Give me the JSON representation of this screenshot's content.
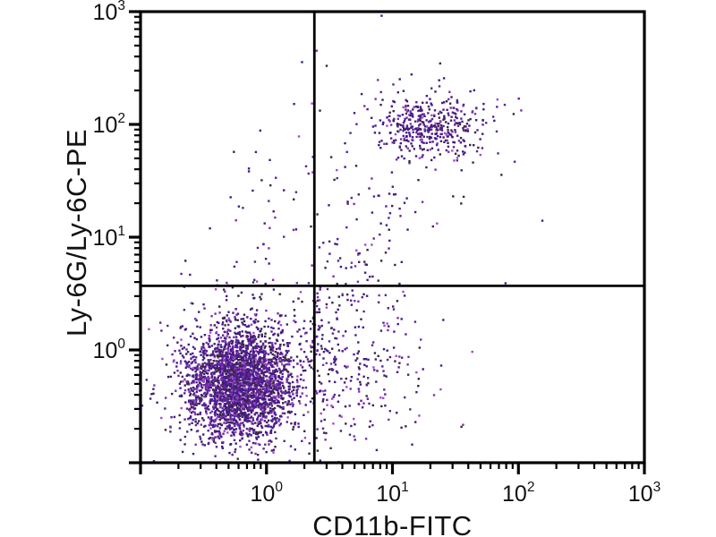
{
  "figure": {
    "kind": "flow-cytometry-quadrant-dot-plot",
    "background_color": "#ffffff",
    "axis_color": "#000000",
    "gate_line_color": "#000000",
    "dot_palette": [
      [
        "#451b86",
        0.4
      ],
      [
        "#5a2398",
        0.22
      ],
      [
        "#3a273f",
        0.18
      ],
      [
        "#7b2fb0",
        0.12
      ],
      [
        "#a348cd",
        0.08
      ]
    ]
  },
  "chart_data": {
    "type": "scatter",
    "title": "",
    "xlabel": "CD11b-FITC",
    "ylabel": "Ly-6G/Ly-6C-PE",
    "x_scale": "log",
    "y_scale": "log",
    "x_range": [
      0.1,
      1000
    ],
    "y_range": [
      0.1,
      1000
    ],
    "grid": false,
    "legend": "none",
    "x_axis": {
      "label": "CD11b-FITC",
      "exponent_min": -1,
      "exponent_max": 3,
      "labeled_exponents": [
        0,
        1,
        2,
        3
      ],
      "tick_base": "10",
      "minor_ticks": [
        2,
        3,
        4,
        5,
        6,
        7,
        8,
        9
      ]
    },
    "y_axis": {
      "label": "Ly-6G/Ly-6C-PE",
      "exponent_min": -1,
      "exponent_max": 3,
      "labeled_exponents": [
        0,
        1,
        2,
        3
      ],
      "tick_base": "10",
      "minor_ticks": [
        2,
        3,
        4,
        5,
        6,
        7,
        8,
        9
      ]
    },
    "quadrant_gates": {
      "x_value": 2.4,
      "y_value": 3.7
    },
    "populations_note": "clusters given as log10-space gaussians; centers listed in data units",
    "clusters": [
      {
        "name": "double-negative-core",
        "approx_center": [
          0.6,
          0.49
        ],
        "n": 2600,
        "log10_center": [
          -0.22,
          -0.31
        ],
        "log10_sd": [
          0.215,
          0.235
        ]
      },
      {
        "name": "double-negative-diffuse",
        "approx_center": [
          0.74,
          0.69
        ],
        "n": 430,
        "log10_center": [
          -0.13,
          -0.16
        ],
        "log10_sd": [
          0.33,
          0.42
        ]
      },
      {
        "name": "cd11b-ly6-double-positive",
        "approx_center": [
          19.0,
          96.0
        ],
        "n": 360,
        "log10_center": [
          1.28,
          1.98
        ],
        "log10_sd": [
          0.21,
          0.13
        ]
      },
      {
        "name": "double-positive-fringe",
        "approx_center": [
          17.8,
          100.0
        ],
        "n": 90,
        "log10_center": [
          1.25,
          2.0
        ],
        "log10_sd": [
          0.33,
          0.27
        ]
      },
      {
        "name": "bottom-right-scatter",
        "approx_center": [
          5.0,
          0.63
        ],
        "n": 230,
        "log10_center": [
          0.7,
          -0.2
        ],
        "log10_sd": [
          0.3,
          0.36
        ]
      },
      {
        "name": "top-left-sparse",
        "approx_center": [
          1.26,
          19.0
        ],
        "n": 46,
        "log10_center": [
          0.1,
          1.28
        ],
        "log10_sd": [
          0.22,
          0.44
        ]
      },
      {
        "name": "bridge-low",
        "approx_center": [
          3.0,
          1.8
        ],
        "n": 45,
        "log10_center": [
          0.48,
          0.25
        ],
        "log10_sd": [
          0.16,
          0.28
        ]
      },
      {
        "name": "bridge-mid",
        "approx_center": [
          5.2,
          5.6
        ],
        "n": 50,
        "log10_center": [
          0.72,
          0.75
        ],
        "log10_sd": [
          0.16,
          0.3
        ]
      },
      {
        "name": "bridge-high",
        "approx_center": [
          8.9,
          20.0
        ],
        "n": 45,
        "log10_center": [
          0.95,
          1.3
        ],
        "log10_sd": [
          0.17,
          0.28
        ]
      }
    ],
    "outliers": [
      [
        8.2,
        920
      ],
      [
        155,
        14
      ],
      [
        79,
        3.9
      ]
    ]
  }
}
